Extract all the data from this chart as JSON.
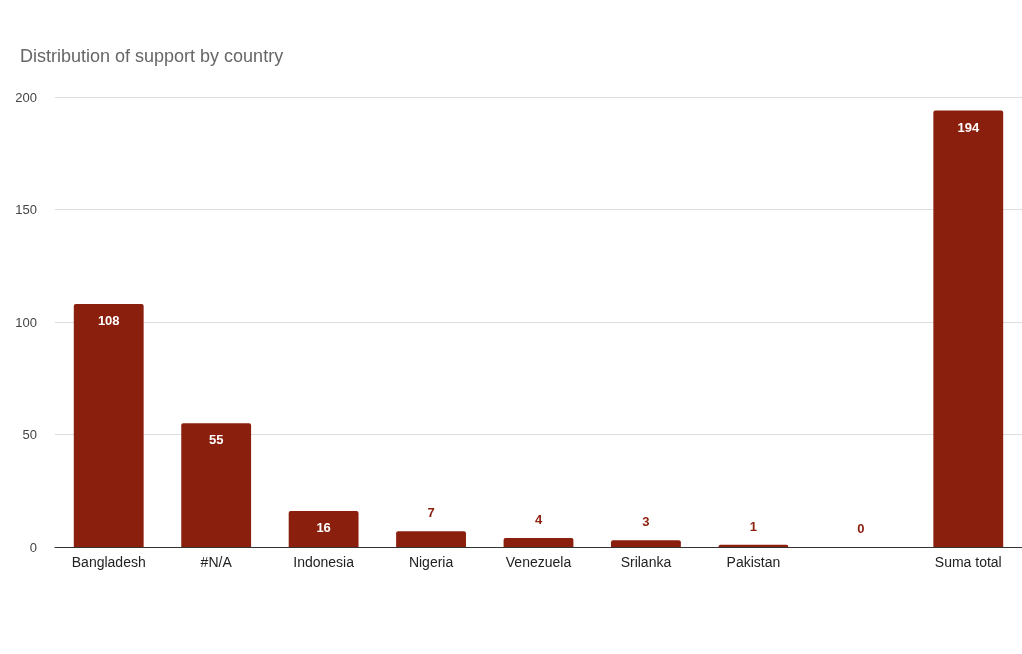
{
  "chart_data": {
    "type": "bar",
    "title": "Distribution of support by country",
    "categories": [
      "Bangladesh",
      "#N/A",
      "Indonesia",
      "Nigeria",
      "Venezuela",
      "Srilanka",
      "Pakistan",
      null,
      "Suma total"
    ],
    "values": [
      108,
      55,
      16,
      7,
      4,
      3,
      1,
      0,
      194
    ],
    "color": "#8b1f0d",
    "ylim": [
      0,
      200
    ],
    "yticks": [
      0,
      50,
      100,
      150,
      200
    ],
    "grid": "y",
    "data_labels": true
  }
}
